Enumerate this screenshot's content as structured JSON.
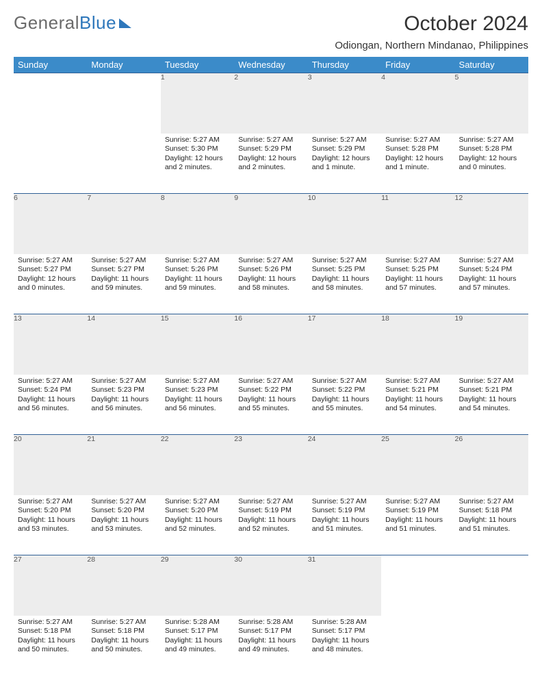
{
  "brand": {
    "part1": "General",
    "part2": "Blue"
  },
  "title": "October 2024",
  "location": "Odiongan, Northern Mindanao, Philippines",
  "dayHeaders": [
    "Sunday",
    "Monday",
    "Tuesday",
    "Wednesday",
    "Thursday",
    "Friday",
    "Saturday"
  ],
  "colors": {
    "headerBg": "#3b8bc9",
    "rowSep": "#2f5f95",
    "dayNumBg": "#ededed"
  },
  "weeks": [
    [
      null,
      null,
      {
        "n": "1",
        "sr": "Sunrise: 5:27 AM",
        "ss": "Sunset: 5:30 PM",
        "dl": "Daylight: 12 hours and 2 minutes."
      },
      {
        "n": "2",
        "sr": "Sunrise: 5:27 AM",
        "ss": "Sunset: 5:29 PM",
        "dl": "Daylight: 12 hours and 2 minutes."
      },
      {
        "n": "3",
        "sr": "Sunrise: 5:27 AM",
        "ss": "Sunset: 5:29 PM",
        "dl": "Daylight: 12 hours and 1 minute."
      },
      {
        "n": "4",
        "sr": "Sunrise: 5:27 AM",
        "ss": "Sunset: 5:28 PM",
        "dl": "Daylight: 12 hours and 1 minute."
      },
      {
        "n": "5",
        "sr": "Sunrise: 5:27 AM",
        "ss": "Sunset: 5:28 PM",
        "dl": "Daylight: 12 hours and 0 minutes."
      }
    ],
    [
      {
        "n": "6",
        "sr": "Sunrise: 5:27 AM",
        "ss": "Sunset: 5:27 PM",
        "dl": "Daylight: 12 hours and 0 minutes."
      },
      {
        "n": "7",
        "sr": "Sunrise: 5:27 AM",
        "ss": "Sunset: 5:27 PM",
        "dl": "Daylight: 11 hours and 59 minutes."
      },
      {
        "n": "8",
        "sr": "Sunrise: 5:27 AM",
        "ss": "Sunset: 5:26 PM",
        "dl": "Daylight: 11 hours and 59 minutes."
      },
      {
        "n": "9",
        "sr": "Sunrise: 5:27 AM",
        "ss": "Sunset: 5:26 PM",
        "dl": "Daylight: 11 hours and 58 minutes."
      },
      {
        "n": "10",
        "sr": "Sunrise: 5:27 AM",
        "ss": "Sunset: 5:25 PM",
        "dl": "Daylight: 11 hours and 58 minutes."
      },
      {
        "n": "11",
        "sr": "Sunrise: 5:27 AM",
        "ss": "Sunset: 5:25 PM",
        "dl": "Daylight: 11 hours and 57 minutes."
      },
      {
        "n": "12",
        "sr": "Sunrise: 5:27 AM",
        "ss": "Sunset: 5:24 PM",
        "dl": "Daylight: 11 hours and 57 minutes."
      }
    ],
    [
      {
        "n": "13",
        "sr": "Sunrise: 5:27 AM",
        "ss": "Sunset: 5:24 PM",
        "dl": "Daylight: 11 hours and 56 minutes."
      },
      {
        "n": "14",
        "sr": "Sunrise: 5:27 AM",
        "ss": "Sunset: 5:23 PM",
        "dl": "Daylight: 11 hours and 56 minutes."
      },
      {
        "n": "15",
        "sr": "Sunrise: 5:27 AM",
        "ss": "Sunset: 5:23 PM",
        "dl": "Daylight: 11 hours and 56 minutes."
      },
      {
        "n": "16",
        "sr": "Sunrise: 5:27 AM",
        "ss": "Sunset: 5:22 PM",
        "dl": "Daylight: 11 hours and 55 minutes."
      },
      {
        "n": "17",
        "sr": "Sunrise: 5:27 AM",
        "ss": "Sunset: 5:22 PM",
        "dl": "Daylight: 11 hours and 55 minutes."
      },
      {
        "n": "18",
        "sr": "Sunrise: 5:27 AM",
        "ss": "Sunset: 5:21 PM",
        "dl": "Daylight: 11 hours and 54 minutes."
      },
      {
        "n": "19",
        "sr": "Sunrise: 5:27 AM",
        "ss": "Sunset: 5:21 PM",
        "dl": "Daylight: 11 hours and 54 minutes."
      }
    ],
    [
      {
        "n": "20",
        "sr": "Sunrise: 5:27 AM",
        "ss": "Sunset: 5:20 PM",
        "dl": "Daylight: 11 hours and 53 minutes."
      },
      {
        "n": "21",
        "sr": "Sunrise: 5:27 AM",
        "ss": "Sunset: 5:20 PM",
        "dl": "Daylight: 11 hours and 53 minutes."
      },
      {
        "n": "22",
        "sr": "Sunrise: 5:27 AM",
        "ss": "Sunset: 5:20 PM",
        "dl": "Daylight: 11 hours and 52 minutes."
      },
      {
        "n": "23",
        "sr": "Sunrise: 5:27 AM",
        "ss": "Sunset: 5:19 PM",
        "dl": "Daylight: 11 hours and 52 minutes."
      },
      {
        "n": "24",
        "sr": "Sunrise: 5:27 AM",
        "ss": "Sunset: 5:19 PM",
        "dl": "Daylight: 11 hours and 51 minutes."
      },
      {
        "n": "25",
        "sr": "Sunrise: 5:27 AM",
        "ss": "Sunset: 5:19 PM",
        "dl": "Daylight: 11 hours and 51 minutes."
      },
      {
        "n": "26",
        "sr": "Sunrise: 5:27 AM",
        "ss": "Sunset: 5:18 PM",
        "dl": "Daylight: 11 hours and 51 minutes."
      }
    ],
    [
      {
        "n": "27",
        "sr": "Sunrise: 5:27 AM",
        "ss": "Sunset: 5:18 PM",
        "dl": "Daylight: 11 hours and 50 minutes."
      },
      {
        "n": "28",
        "sr": "Sunrise: 5:27 AM",
        "ss": "Sunset: 5:18 PM",
        "dl": "Daylight: 11 hours and 50 minutes."
      },
      {
        "n": "29",
        "sr": "Sunrise: 5:28 AM",
        "ss": "Sunset: 5:17 PM",
        "dl": "Daylight: 11 hours and 49 minutes."
      },
      {
        "n": "30",
        "sr": "Sunrise: 5:28 AM",
        "ss": "Sunset: 5:17 PM",
        "dl": "Daylight: 11 hours and 49 minutes."
      },
      {
        "n": "31",
        "sr": "Sunrise: 5:28 AM",
        "ss": "Sunset: 5:17 PM",
        "dl": "Daylight: 11 hours and 48 minutes."
      },
      null,
      null
    ]
  ]
}
